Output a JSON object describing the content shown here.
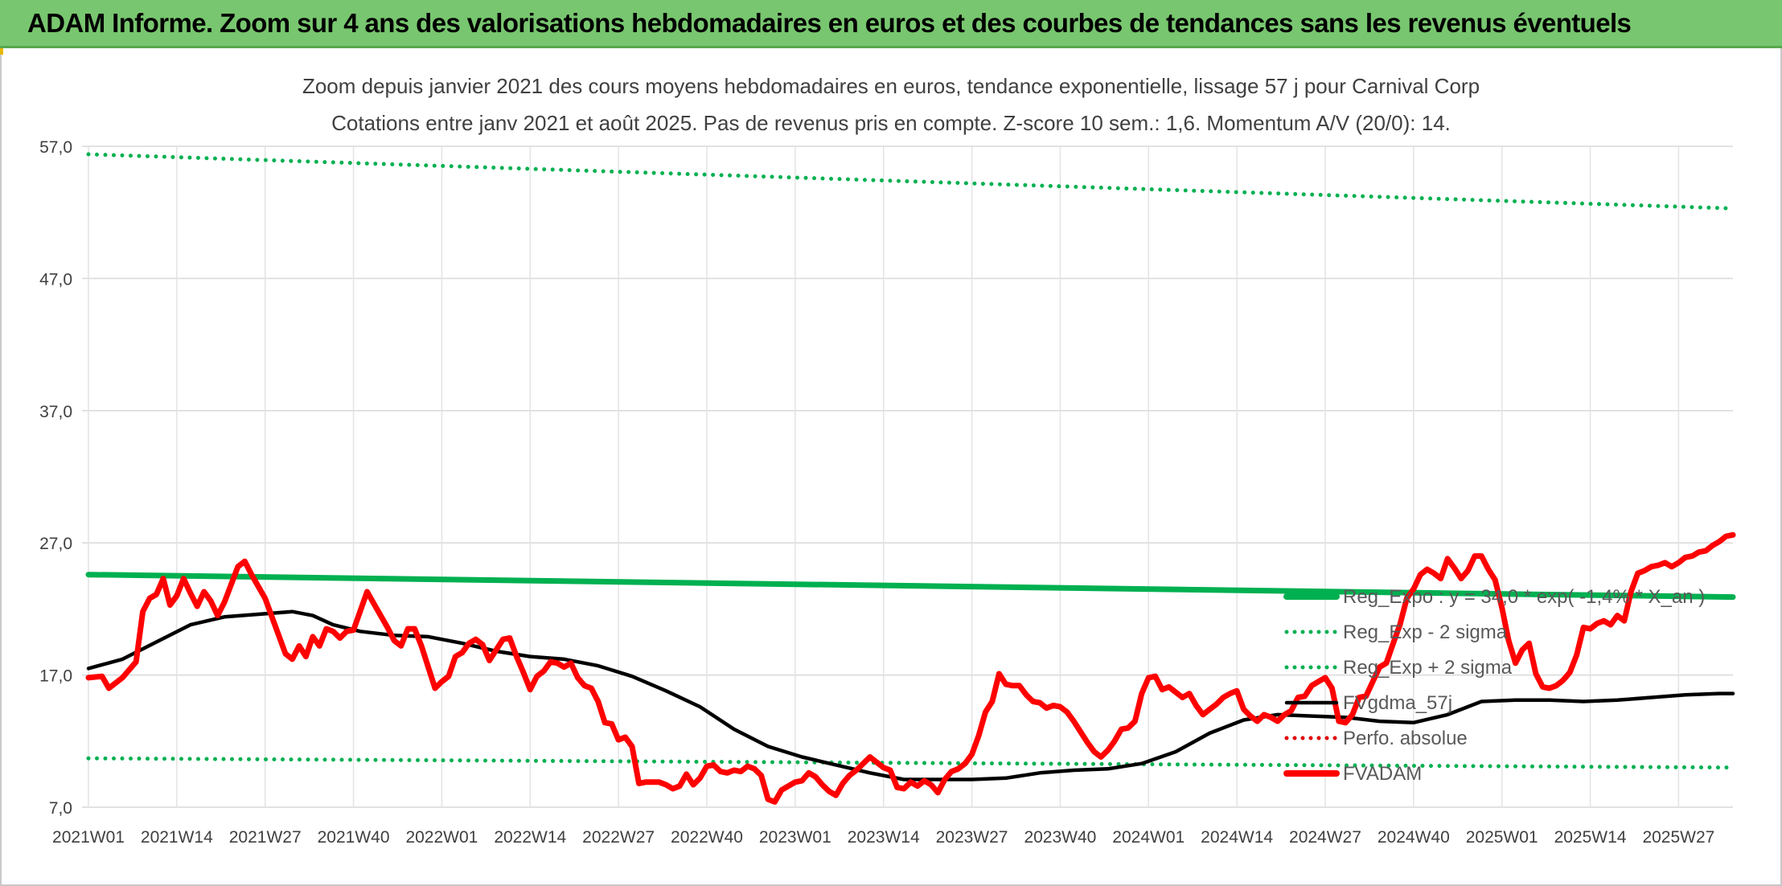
{
  "banner": {
    "title": "ADAM Informe. Zoom sur 4 ans des valorisations hebdomadaires en euros et des courbes de tendances sans les revenus éventuels"
  },
  "chart_data": {
    "type": "line",
    "title": "Zoom depuis janvier 2021 des cours moyens hebdomadaires en euros, tendance exponentielle, lissage 57 j pour Carnival Corp",
    "subtitle": "Cotations entre janv 2021 et août 2025. Pas de revenus pris en compte. Z-score 10 sem.: 1,6. Momentum A/V (20/0): 14.",
    "xlabel": "",
    "ylabel": "",
    "ylim": [
      7,
      58
    ],
    "yticks": [
      "7,0",
      "17,0",
      "27,0",
      "37,0",
      "47,0",
      "57,0"
    ],
    "ytick_values": [
      7,
      17,
      27,
      37,
      47,
      57
    ],
    "xticks": [
      "2021W01",
      "2021W14",
      "2021W27",
      "2021W40",
      "2022W01",
      "2022W14",
      "2022W27",
      "2022W40",
      "2023W01",
      "2023W14",
      "2023W27",
      "2023W40",
      "2024W01",
      "2024W14",
      "2024W27",
      "2024W40",
      "2025W01",
      "2025W14",
      "2025W27"
    ],
    "n_weeks": 243,
    "grid": true,
    "legend_position": "right",
    "series": [
      {
        "name": "Reg_Expo : y = 34,0 * exp( -1,4% * X_an )",
        "style": "solid-thick",
        "color": "#00b050",
        "points": [
          [
            0,
            24.6
          ],
          [
            242,
            22.9
          ]
        ]
      },
      {
        "name": "Reg_Exp - 2 sigma",
        "style": "dotted",
        "color": "#00b050",
        "points": [
          [
            0,
            10.7
          ],
          [
            242,
            10.0
          ]
        ]
      },
      {
        "name": "Reg_Exp + 2 sigma",
        "style": "dotted",
        "color": "#00b050",
        "points": [
          [
            0,
            56.4
          ],
          [
            242,
            52.3
          ]
        ]
      },
      {
        "name": "FVgdma_57j",
        "style": "solid",
        "color": "#000000",
        "points": [
          [
            0,
            17.5
          ],
          [
            5,
            18.2
          ],
          [
            10,
            19.5
          ],
          [
            15,
            20.8
          ],
          [
            20,
            21.4
          ],
          [
            25,
            21.6
          ],
          [
            30,
            21.8
          ],
          [
            33,
            21.5
          ],
          [
            36,
            20.8
          ],
          [
            40,
            20.3
          ],
          [
            45,
            20.0
          ],
          [
            50,
            19.9
          ],
          [
            55,
            19.4
          ],
          [
            60,
            18.8
          ],
          [
            65,
            18.4
          ],
          [
            70,
            18.2
          ],
          [
            75,
            17.7
          ],
          [
            80,
            16.9
          ],
          [
            85,
            15.8
          ],
          [
            90,
            14.6
          ],
          [
            95,
            12.9
          ],
          [
            100,
            11.6
          ],
          [
            105,
            10.8
          ],
          [
            110,
            10.2
          ],
          [
            115,
            9.6
          ],
          [
            120,
            9.1
          ],
          [
            125,
            9.1
          ],
          [
            130,
            9.1
          ],
          [
            135,
            9.2
          ],
          [
            140,
            9.6
          ],
          [
            145,
            9.8
          ],
          [
            150,
            9.9
          ],
          [
            155,
            10.3
          ],
          [
            160,
            11.2
          ],
          [
            165,
            12.6
          ],
          [
            170,
            13.6
          ],
          [
            175,
            14.0
          ],
          [
            180,
            13.9
          ],
          [
            185,
            13.8
          ],
          [
            190,
            13.5
          ],
          [
            195,
            13.4
          ],
          [
            200,
            14.0
          ],
          [
            205,
            15.0
          ],
          [
            210,
            15.1
          ],
          [
            215,
            15.1
          ],
          [
            220,
            15.0
          ],
          [
            225,
            15.1
          ],
          [
            230,
            15.3
          ],
          [
            235,
            15.5
          ],
          [
            240,
            15.6
          ],
          [
            242,
            15.6
          ]
        ]
      },
      {
        "name": "Perfo. absolue",
        "style": "dotted",
        "color": "#e00000",
        "points": []
      },
      {
        "name": "FVADAM",
        "style": "solid-thick",
        "color": "#ff0000",
        "points": [
          [
            0,
            16.8
          ],
          [
            2,
            16.9
          ],
          [
            3,
            16.0
          ],
          [
            5,
            16.8
          ],
          [
            7,
            18.0
          ],
          [
            8,
            21.8
          ],
          [
            9,
            22.8
          ],
          [
            10,
            23.1
          ],
          [
            11,
            24.3
          ],
          [
            12,
            22.3
          ],
          [
            13,
            23.0
          ],
          [
            14,
            24.3
          ],
          [
            15,
            23.2
          ],
          [
            16,
            22.2
          ],
          [
            17,
            23.3
          ],
          [
            18,
            22.6
          ],
          [
            19,
            21.5
          ],
          [
            20,
            22.5
          ],
          [
            22,
            25.2
          ],
          [
            23,
            25.6
          ],
          [
            24,
            24.6
          ],
          [
            26,
            22.8
          ],
          [
            28,
            20.0
          ],
          [
            29,
            18.6
          ],
          [
            30,
            18.2
          ],
          [
            31,
            19.2
          ],
          [
            32,
            18.4
          ],
          [
            33,
            19.9
          ],
          [
            34,
            19.2
          ],
          [
            35,
            20.5
          ],
          [
            36,
            20.3
          ],
          [
            37,
            19.8
          ],
          [
            38,
            20.3
          ],
          [
            39,
            20.4
          ],
          [
            41,
            23.3
          ],
          [
            42,
            22.4
          ],
          [
            44,
            20.6
          ],
          [
            45,
            19.6
          ],
          [
            46,
            19.2
          ],
          [
            47,
            20.5
          ],
          [
            48,
            20.5
          ],
          [
            49,
            19.2
          ],
          [
            50,
            17.6
          ],
          [
            51,
            16.0
          ],
          [
            52,
            16.5
          ],
          [
            53,
            16.9
          ],
          [
            54,
            18.4
          ],
          [
            55,
            18.7
          ],
          [
            56,
            19.4
          ],
          [
            57,
            19.7
          ],
          [
            58,
            19.3
          ],
          [
            59,
            18.1
          ],
          [
            60,
            18.9
          ],
          [
            61,
            19.7
          ],
          [
            62,
            19.8
          ],
          [
            63,
            18.4
          ],
          [
            64,
            17.2
          ],
          [
            65,
            15.9
          ],
          [
            66,
            16.9
          ],
          [
            67,
            17.3
          ],
          [
            68,
            18.0
          ],
          [
            69,
            17.9
          ],
          [
            70,
            17.6
          ],
          [
            71,
            17.9
          ],
          [
            72,
            16.8
          ],
          [
            73,
            16.2
          ],
          [
            74,
            16.0
          ],
          [
            75,
            15.0
          ],
          [
            76,
            13.4
          ],
          [
            77,
            13.3
          ],
          [
            78,
            12.1
          ],
          [
            79,
            12.3
          ],
          [
            80,
            11.6
          ],
          [
            81,
            8.8
          ],
          [
            82,
            8.9
          ],
          [
            84,
            8.9
          ],
          [
            85,
            8.7
          ],
          [
            86,
            8.4
          ],
          [
            87,
            8.6
          ],
          [
            88,
            9.5
          ],
          [
            89,
            8.7
          ],
          [
            90,
            9.2
          ],
          [
            91,
            10.1
          ],
          [
            92,
            10.2
          ],
          [
            93,
            9.7
          ],
          [
            94,
            9.6
          ],
          [
            95,
            9.8
          ],
          [
            96,
            9.7
          ],
          [
            97,
            10.1
          ],
          [
            98,
            9.9
          ],
          [
            99,
            9.4
          ],
          [
            100,
            7.6
          ],
          [
            101,
            7.4
          ],
          [
            102,
            8.3
          ],
          [
            104,
            8.9
          ],
          [
            105,
            9.0
          ],
          [
            106,
            9.6
          ],
          [
            107,
            9.3
          ],
          [
            108,
            8.7
          ],
          [
            109,
            8.2
          ],
          [
            110,
            7.9
          ],
          [
            111,
            8.8
          ],
          [
            112,
            9.4
          ],
          [
            113,
            9.8
          ],
          [
            115,
            10.8
          ],
          [
            116,
            10.4
          ],
          [
            117,
            10.0
          ],
          [
            118,
            9.8
          ],
          [
            119,
            8.5
          ],
          [
            120,
            8.4
          ],
          [
            121,
            8.9
          ],
          [
            122,
            8.6
          ],
          [
            123,
            9.0
          ],
          [
            124,
            8.7
          ],
          [
            125,
            8.1
          ],
          [
            126,
            9.1
          ],
          [
            127,
            9.7
          ],
          [
            128,
            9.9
          ],
          [
            129,
            10.3
          ],
          [
            130,
            11.0
          ],
          [
            131,
            12.4
          ],
          [
            132,
            14.2
          ],
          [
            133,
            15.0
          ],
          [
            134,
            17.1
          ],
          [
            135,
            16.3
          ],
          [
            136,
            16.2
          ],
          [
            137,
            16.2
          ],
          [
            138,
            15.5
          ],
          [
            139,
            15.0
          ],
          [
            140,
            14.9
          ],
          [
            141,
            14.5
          ],
          [
            142,
            14.7
          ],
          [
            143,
            14.6
          ],
          [
            144,
            14.2
          ],
          [
            145,
            13.5
          ],
          [
            146,
            12.7
          ],
          [
            147,
            11.9
          ],
          [
            148,
            11.2
          ],
          [
            149,
            10.8
          ],
          [
            150,
            11.3
          ],
          [
            151,
            12.0
          ],
          [
            152,
            12.9
          ],
          [
            153,
            13.0
          ],
          [
            154,
            13.5
          ],
          [
            155,
            15.6
          ],
          [
            156,
            16.8
          ],
          [
            157,
            16.9
          ],
          [
            158,
            15.9
          ],
          [
            159,
            16.1
          ],
          [
            160,
            15.7
          ],
          [
            161,
            15.3
          ],
          [
            162,
            15.6
          ],
          [
            163,
            14.7
          ],
          [
            164,
            14.0
          ],
          [
            165,
            14.4
          ],
          [
            166,
            14.8
          ],
          [
            167,
            15.3
          ],
          [
            168,
            15.6
          ],
          [
            169,
            15.8
          ],
          [
            170,
            14.4
          ],
          [
            171,
            13.9
          ],
          [
            172,
            13.5
          ],
          [
            173,
            14.0
          ],
          [
            174,
            13.8
          ],
          [
            175,
            13.5
          ],
          [
            176,
            14.0
          ],
          [
            177,
            14.3
          ],
          [
            178,
            15.3
          ],
          [
            179,
            15.4
          ],
          [
            180,
            16.2
          ],
          [
            181,
            16.5
          ],
          [
            182,
            16.8
          ],
          [
            183,
            16.0
          ],
          [
            184,
            13.5
          ],
          [
            185,
            13.4
          ],
          [
            186,
            14.0
          ],
          [
            187,
            15.3
          ],
          [
            188,
            15.4
          ],
          [
            189,
            16.5
          ],
          [
            190,
            17.6
          ],
          [
            191,
            17.9
          ],
          [
            192,
            19.4
          ],
          [
            193,
            20.8
          ],
          [
            194,
            22.8
          ],
          [
            195,
            23.5
          ],
          [
            196,
            24.6
          ],
          [
            197,
            25.0
          ],
          [
            198,
            24.7
          ],
          [
            199,
            24.3
          ],
          [
            200,
            25.8
          ],
          [
            201,
            25.1
          ],
          [
            202,
            24.3
          ],
          [
            203,
            24.9
          ],
          [
            204,
            26.0
          ],
          [
            205,
            26.0
          ],
          [
            206,
            25.0
          ],
          [
            207,
            24.2
          ],
          [
            208,
            22.1
          ],
          [
            209,
            19.6
          ],
          [
            210,
            17.9
          ],
          [
            211,
            18.9
          ],
          [
            212,
            19.4
          ],
          [
            213,
            17.1
          ],
          [
            214,
            16.1
          ],
          [
            215,
            16.0
          ],
          [
            216,
            16.2
          ],
          [
            217,
            16.6
          ],
          [
            218,
            17.2
          ],
          [
            219,
            18.5
          ],
          [
            220,
            20.6
          ],
          [
            221,
            20.5
          ],
          [
            222,
            20.9
          ],
          [
            223,
            21.1
          ],
          [
            224,
            20.8
          ],
          [
            225,
            21.5
          ],
          [
            226,
            21.1
          ],
          [
            227,
            23.3
          ],
          [
            228,
            24.7
          ],
          [
            229,
            24.9
          ],
          [
            230,
            25.2
          ],
          [
            231,
            25.3
          ],
          [
            232,
            25.5
          ],
          [
            233,
            25.2
          ],
          [
            234,
            25.5
          ],
          [
            235,
            25.9
          ],
          [
            236,
            26.0
          ],
          [
            237,
            26.3
          ],
          [
            238,
            26.4
          ],
          [
            239,
            26.8
          ],
          [
            240,
            27.1
          ],
          [
            241,
            27.5
          ],
          [
            242,
            27.6
          ]
        ]
      }
    ],
    "colors": {
      "banner_bg": "#78c66f",
      "green": "#00b050",
      "red": "#ff0000",
      "black": "#000000",
      "grid": "#d9d9d9",
      "text": "#404040"
    }
  }
}
